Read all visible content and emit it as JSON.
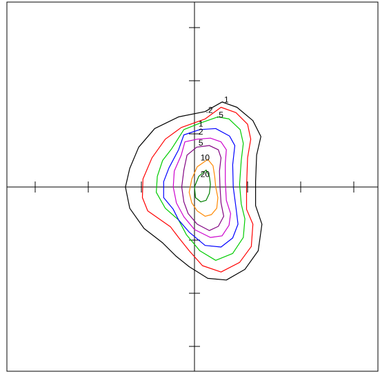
{
  "chart_data": {
    "type": "contour",
    "axes": {
      "x_ticks": [
        -3,
        -2,
        -1,
        1,
        2,
        3
      ],
      "y_ticks": [
        -3,
        -2,
        -1,
        1,
        2,
        3
      ],
      "xlim": [
        -3.5,
        3.5
      ],
      "ylim": [
        -3.5,
        3.5
      ],
      "frame": true,
      "tick_labels_shown": false
    },
    "contours": [
      {
        "level": ".1",
        "color": "#000000",
        "points": [
          [
            0.52,
            1.6
          ],
          [
            0.2,
            1.42
          ],
          [
            -0.3,
            1.32
          ],
          [
            -0.75,
            1.1
          ],
          [
            -1.05,
            0.75
          ],
          [
            -1.22,
            0.35
          ],
          [
            -1.3,
            0.0
          ],
          [
            -1.22,
            -0.4
          ],
          [
            -0.95,
            -0.78
          ],
          [
            -0.6,
            -1.05
          ],
          [
            -0.35,
            -1.3
          ],
          [
            -0.1,
            -1.5
          ],
          [
            0.25,
            -1.72
          ],
          [
            0.6,
            -1.75
          ],
          [
            0.95,
            -1.55
          ],
          [
            1.2,
            -1.2
          ],
          [
            1.27,
            -0.7
          ],
          [
            1.15,
            -0.35
          ],
          [
            1.15,
            0.1
          ],
          [
            1.17,
            0.6
          ],
          [
            1.25,
            0.95
          ],
          [
            1.1,
            1.25
          ],
          [
            0.8,
            1.5
          ]
        ]
      },
      {
        "level": ".2",
        "color": "#ff0000",
        "points": [
          [
            0.5,
            1.5
          ],
          [
            0.2,
            1.28
          ],
          [
            -0.25,
            1.12
          ],
          [
            -0.55,
            0.9
          ],
          [
            -0.8,
            0.55
          ],
          [
            -0.97,
            0.15
          ],
          [
            -0.98,
            -0.2
          ],
          [
            -0.88,
            -0.45
          ],
          [
            -0.45,
            -0.75
          ],
          [
            -0.3,
            -0.95
          ],
          [
            -0.1,
            -1.2
          ],
          [
            0.15,
            -1.48
          ],
          [
            0.5,
            -1.6
          ],
          [
            0.85,
            -1.42
          ],
          [
            1.07,
            -1.12
          ],
          [
            1.1,
            -0.7
          ],
          [
            0.98,
            -0.42
          ],
          [
            0.98,
            0.0
          ],
          [
            1.0,
            0.55
          ],
          [
            1.06,
            0.9
          ],
          [
            1.0,
            1.18
          ],
          [
            0.78,
            1.4
          ]
        ]
      },
      {
        "level": ".5",
        "color": "#00cc00",
        "points": [
          [
            0.44,
            1.32
          ],
          [
            0.1,
            1.2
          ],
          [
            -0.2,
            1.08
          ],
          [
            -0.43,
            0.72
          ],
          [
            -0.6,
            0.5
          ],
          [
            -0.7,
            0.2
          ],
          [
            -0.72,
            -0.1
          ],
          [
            -0.55,
            -0.4
          ],
          [
            -0.3,
            -0.62
          ],
          [
            -0.15,
            -0.9
          ],
          [
            0.1,
            -1.2
          ],
          [
            0.4,
            -1.38
          ],
          [
            0.72,
            -1.25
          ],
          [
            0.92,
            -0.95
          ],
          [
            0.95,
            -0.6
          ],
          [
            0.88,
            -0.32
          ],
          [
            0.85,
            0.05
          ],
          [
            0.88,
            0.5
          ],
          [
            0.92,
            0.82
          ],
          [
            0.86,
            1.08
          ],
          [
            0.65,
            1.28
          ]
        ]
      },
      {
        "level": "1",
        "color": "#0000ff",
        "points": [
          [
            0.1,
            1.08
          ],
          [
            -0.2,
            0.98
          ],
          [
            -0.3,
            0.7
          ],
          [
            -0.48,
            0.36
          ],
          [
            -0.58,
            0.1
          ],
          [
            -0.58,
            -0.2
          ],
          [
            -0.4,
            -0.42
          ],
          [
            -0.3,
            -0.62
          ],
          [
            -0.1,
            -0.85
          ],
          [
            0.2,
            -1.1
          ],
          [
            0.5,
            -1.13
          ],
          [
            0.72,
            -0.96
          ],
          [
            0.82,
            -0.7
          ],
          [
            0.78,
            -0.38
          ],
          [
            0.73,
            0.0
          ],
          [
            0.72,
            0.42
          ],
          [
            0.76,
            0.78
          ],
          [
            0.66,
            0.96
          ],
          [
            0.4,
            1.1
          ]
        ]
      },
      {
        "level": "2",
        "color": "#cc00cc",
        "points": [
          [
            0.05,
            0.9
          ],
          [
            -0.18,
            0.85
          ],
          [
            -0.25,
            0.6
          ],
          [
            -0.38,
            0.3
          ],
          [
            -0.4,
            0.0
          ],
          [
            -0.34,
            -0.3
          ],
          [
            -0.2,
            -0.56
          ],
          [
            0.0,
            -0.8
          ],
          [
            0.3,
            -0.95
          ],
          [
            0.52,
            -0.92
          ],
          [
            0.65,
            -0.72
          ],
          [
            0.68,
            -0.5
          ],
          [
            0.6,
            -0.25
          ],
          [
            0.58,
            0.1
          ],
          [
            0.58,
            0.45
          ],
          [
            0.6,
            0.7
          ],
          [
            0.5,
            0.85
          ],
          [
            0.3,
            0.92
          ]
        ]
      },
      {
        "level": "5",
        "color": "#800080",
        "points": [
          [
            0.04,
            0.75
          ],
          [
            -0.14,
            0.6
          ],
          [
            -0.2,
            0.32
          ],
          [
            -0.24,
            0.0
          ],
          [
            -0.2,
            -0.28
          ],
          [
            -0.12,
            -0.5
          ],
          [
            0.05,
            -0.7
          ],
          [
            0.28,
            -0.82
          ],
          [
            0.45,
            -0.74
          ],
          [
            0.55,
            -0.55
          ],
          [
            0.5,
            -0.3
          ],
          [
            0.48,
            0.0
          ],
          [
            0.47,
            0.3
          ],
          [
            0.5,
            0.55
          ],
          [
            0.45,
            0.7
          ],
          [
            0.28,
            0.78
          ]
        ]
      },
      {
        "level": "10",
        "color": "#ff8800",
        "points": [
          [
            0.25,
            0.52
          ],
          [
            0.05,
            0.38
          ],
          [
            -0.05,
            0.15
          ],
          [
            -0.1,
            -0.1
          ],
          [
            -0.05,
            -0.3
          ],
          [
            0.05,
            -0.45
          ],
          [
            0.2,
            -0.55
          ],
          [
            0.32,
            -0.52
          ],
          [
            0.42,
            -0.4
          ],
          [
            0.44,
            -0.2
          ],
          [
            0.4,
            0.0
          ],
          [
            0.38,
            0.2
          ],
          [
            0.35,
            0.4
          ]
        ]
      },
      {
        "level": "20",
        "color": "#008000",
        "points": [
          [
            0.22,
            0.32
          ],
          [
            0.08,
            0.2
          ],
          [
            0.0,
            0.0
          ],
          [
            0.02,
            -0.2
          ],
          [
            0.12,
            -0.28
          ],
          [
            0.22,
            -0.25
          ],
          [
            0.28,
            -0.12
          ],
          [
            0.3,
            0.05
          ],
          [
            0.28,
            0.2
          ]
        ]
      }
    ],
    "labels": [
      {
        "text": ".1",
        "x": 0.58,
        "y": 1.64
      },
      {
        "text": ".2",
        "x": 0.28,
        "y": 1.45
      },
      {
        "text": ".5",
        "x": 0.48,
        "y": 1.36
      },
      {
        "text": "1",
        "x": 0.12,
        "y": 1.19
      },
      {
        "text": "2",
        "x": 0.12,
        "y": 1.04
      },
      {
        "text": "5",
        "x": 0.12,
        "y": 0.83
      },
      {
        "text": "10",
        "x": 0.2,
        "y": 0.55
      },
      {
        "text": "20",
        "x": 0.2,
        "y": 0.24
      }
    ]
  }
}
